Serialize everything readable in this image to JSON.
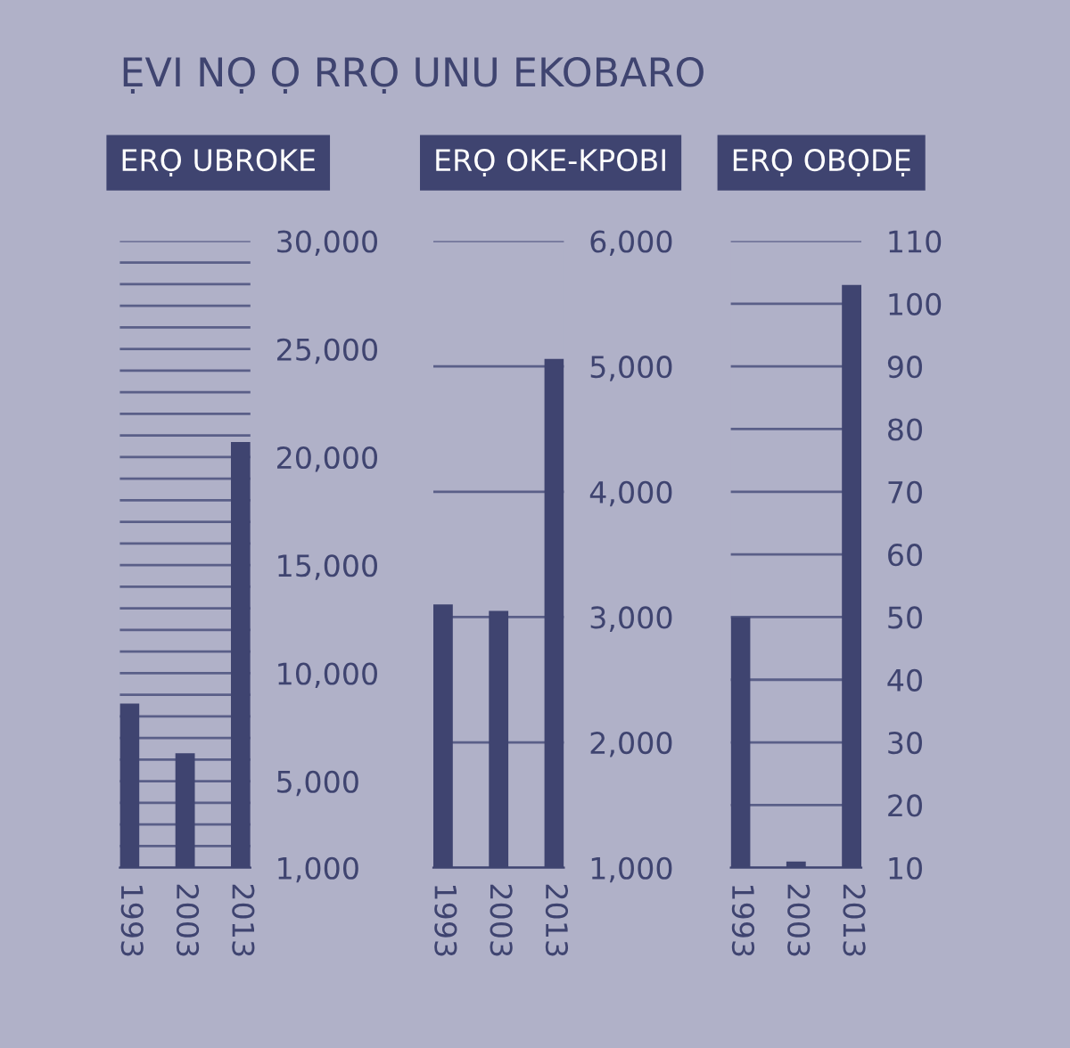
{
  "chart_data": [
    {
      "type": "bar",
      "title": "ERỌ UBROKE",
      "annotations": [
        "ẸVI NỌ Ọ RRỌ UNU EKOBARO"
      ],
      "categories": [
        "1993",
        "2003",
        "2013"
      ],
      "values": [
        8600,
        6300,
        20700
      ],
      "color": "#3f4470",
      "ylim": [
        1000,
        30000
      ],
      "grid": "y",
      "yticks": [
        {
          "value": 1000,
          "label": "1,000"
        },
        {
          "value": 2000,
          "label": null
        },
        {
          "value": 3000,
          "label": null
        },
        {
          "value": 4000,
          "label": null
        },
        {
          "value": 5000,
          "label": "5,000"
        },
        {
          "value": 6000,
          "label": null
        },
        {
          "value": 7000,
          "label": null
        },
        {
          "value": 8000,
          "label": null
        },
        {
          "value": 9000,
          "label": null
        },
        {
          "value": 10000,
          "label": "10,000"
        },
        {
          "value": 11000,
          "label": null
        },
        {
          "value": 12000,
          "label": null
        },
        {
          "value": 13000,
          "label": null
        },
        {
          "value": 14000,
          "label": null
        },
        {
          "value": 15000,
          "label": "15,000"
        },
        {
          "value": 16000,
          "label": null
        },
        {
          "value": 17000,
          "label": null
        },
        {
          "value": 18000,
          "label": null
        },
        {
          "value": 19000,
          "label": null
        },
        {
          "value": 20000,
          "label": "20,000"
        },
        {
          "value": 21000,
          "label": null
        },
        {
          "value": 22000,
          "label": null
        },
        {
          "value": 23000,
          "label": null
        },
        {
          "value": 24000,
          "label": null
        },
        {
          "value": 25000,
          "label": "25,000"
        },
        {
          "value": 26000,
          "label": null
        },
        {
          "value": 27000,
          "label": null
        },
        {
          "value": 28000,
          "label": null
        },
        {
          "value": 29000,
          "label": null
        },
        {
          "value": 30000,
          "label": "30,000"
        }
      ]
    },
    {
      "type": "bar",
      "title": "ERỌ OKE-KPOBI",
      "categories": [
        "1993",
        "2003",
        "2013"
      ],
      "values": [
        3100,
        3050,
        5060
      ],
      "color": "#3f4470",
      "ylim": [
        1000,
        6000
      ],
      "grid": "y",
      "yticks": [
        {
          "value": 1000,
          "label": "1,000"
        },
        {
          "value": 2000,
          "label": "2,000"
        },
        {
          "value": 3000,
          "label": "3,000"
        },
        {
          "value": 4000,
          "label": "4,000"
        },
        {
          "value": 5000,
          "label": "5,000"
        },
        {
          "value": 6000,
          "label": "6,000"
        }
      ]
    },
    {
      "type": "bar",
      "title": "ERỌ OBỌDẸ",
      "categories": [
        "1993",
        "2003",
        "2013"
      ],
      "values": [
        50,
        11,
        103
      ],
      "color": "#3f4470",
      "ylim": [
        10,
        110
      ],
      "grid": "y",
      "yticks": [
        10,
        20,
        30,
        40,
        50,
        60,
        70,
        80,
        90,
        100,
        110
      ]
    }
  ]
}
